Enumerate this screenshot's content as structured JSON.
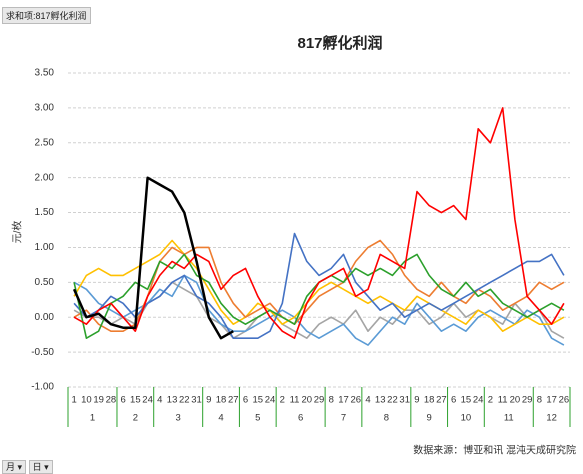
{
  "pivot_field": "求和项:817孵化利润",
  "filters": [
    "月",
    "日"
  ],
  "chart_data": {
    "type": "line",
    "title": "817孵化利润",
    "y_label": "元/枚",
    "source": "数据来源：博亚和讯 混沌天成研究院",
    "months": [
      {
        "label": "1",
        "days": [
          "1",
          "10",
          "19",
          "28"
        ]
      },
      {
        "label": "2",
        "days": [
          "6",
          "15",
          "24"
        ]
      },
      {
        "label": "3",
        "days": [
          "4",
          "13",
          "22",
          "31"
        ]
      },
      {
        "label": "4",
        "days": [
          "9",
          "18",
          "27"
        ]
      },
      {
        "label": "5",
        "days": [
          "6",
          "15",
          "24"
        ]
      },
      {
        "label": "6",
        "days": [
          "2",
          "11",
          "20",
          "29"
        ]
      },
      {
        "label": "7",
        "days": [
          "8",
          "17",
          "26"
        ]
      },
      {
        "label": "8",
        "days": [
          "4",
          "13",
          "22",
          "31"
        ]
      },
      {
        "label": "9",
        "days": [
          "9",
          "18",
          "27"
        ]
      },
      {
        "label": "10",
        "days": [
          "6",
          "15",
          "24"
        ]
      },
      {
        "label": "11",
        "days": [
          "2",
          "11",
          "20",
          "29"
        ]
      },
      {
        "label": "12",
        "days": [
          "8",
          "17",
          "26"
        ]
      }
    ],
    "ylim": [
      -1,
      3.5
    ],
    "yticks": [
      {
        "value": -1,
        "label": "-1.00"
      },
      {
        "value": -0.5,
        "label": "-0.50"
      },
      {
        "value": 0,
        "label": "0.00"
      },
      {
        "value": 0.5,
        "label": "0.50"
      },
      {
        "value": 1,
        "label": "1.00"
      },
      {
        "value": 1.5,
        "label": "1.50"
      },
      {
        "value": 2,
        "label": "2.00"
      },
      {
        "value": 2.5,
        "label": "2.50"
      },
      {
        "value": 3,
        "label": "3.00"
      },
      {
        "value": 3.5,
        "label": "3.50"
      }
    ],
    "grid": true,
    "series": [
      {
        "color": "#a5a5a5",
        "values": [
          0.1,
          0.0,
          0.0,
          -0.1,
          0.0,
          -0.1,
          0.2,
          0.3,
          0.5,
          0.4,
          0.3,
          0.0,
          -0.1,
          -0.3,
          -0.2,
          0.0,
          0.1,
          -0.1,
          -0.2,
          -0.3,
          -0.1,
          0.0,
          -0.1,
          0.1,
          -0.2,
          0.0,
          -0.1,
          0.1,
          0.1,
          -0.1,
          0.0,
          0.2,
          0.0,
          0.1,
          0.0,
          -0.1,
          0.2,
          0.0,
          0.1,
          -0.2,
          -0.3
        ]
      },
      {
        "color": "#5b9bd5",
        "values": [
          0.5,
          0.4,
          0.2,
          0.1,
          0.0,
          0.1,
          0.2,
          0.4,
          0.3,
          0.6,
          0.5,
          0.1,
          -0.1,
          -0.2,
          -0.2,
          -0.1,
          0.0,
          0.1,
          0.0,
          -0.2,
          -0.3,
          -0.2,
          -0.1,
          -0.3,
          -0.4,
          -0.2,
          0.0,
          -0.1,
          0.2,
          0.0,
          -0.2,
          -0.1,
          -0.2,
          0.0,
          0.1,
          0.0,
          -0.1,
          0.1,
          0.0,
          -0.3,
          -0.4
        ]
      },
      {
        "color": "#ffc000",
        "values": [
          0.3,
          0.6,
          0.7,
          0.6,
          0.6,
          0.7,
          0.8,
          0.9,
          1.1,
          0.9,
          0.7,
          0.4,
          0.1,
          -0.1,
          0.0,
          0.2,
          0.1,
          -0.1,
          0.0,
          0.2,
          0.4,
          0.5,
          0.4,
          0.3,
          0.2,
          0.3,
          0.2,
          0.1,
          0.3,
          0.2,
          0.1,
          0.0,
          -0.1,
          0.1,
          0.0,
          -0.2,
          -0.1,
          0.0,
          -0.1,
          -0.1,
          0.0
        ]
      },
      {
        "color": "#ed7d31",
        "values": [
          0.0,
          0.1,
          -0.1,
          -0.2,
          -0.2,
          -0.1,
          0.3,
          0.8,
          1.0,
          0.9,
          1.0,
          1.0,
          0.5,
          0.2,
          0.0,
          0.1,
          0.2,
          0.0,
          -0.1,
          0.1,
          0.3,
          0.4,
          0.5,
          0.8,
          1.0,
          1.1,
          0.9,
          0.6,
          0.4,
          0.3,
          0.5,
          0.3,
          0.2,
          0.4,
          0.3,
          0.1,
          0.2,
          0.3,
          0.5,
          0.4,
          0.5
        ]
      },
      {
        "color": "#4472c4",
        "values": [
          0.2,
          0.0,
          0.1,
          0.3,
          0.2,
          0.0,
          0.2,
          0.3,
          0.5,
          0.6,
          0.3,
          0.2,
          0.0,
          -0.3,
          -0.3,
          -0.3,
          -0.2,
          0.2,
          1.2,
          0.8,
          0.6,
          0.7,
          0.9,
          0.5,
          0.3,
          0.1,
          0.2,
          0.0,
          0.1,
          0.2,
          0.1,
          0.2,
          0.3,
          0.4,
          0.5,
          0.6,
          0.7,
          0.8,
          0.8,
          0.9,
          0.6
        ]
      },
      {
        "color": "#2ca02c",
        "values": [
          0.5,
          -0.3,
          -0.2,
          0.2,
          0.3,
          0.5,
          0.4,
          0.8,
          0.7,
          0.9,
          0.6,
          0.5,
          0.2,
          0.0,
          -0.1,
          0.0,
          0.1,
          0.0,
          -0.1,
          0.3,
          0.5,
          0.6,
          0.5,
          0.7,
          0.6,
          0.7,
          0.6,
          0.8,
          0.9,
          0.6,
          0.4,
          0.3,
          0.5,
          0.3,
          0.4,
          0.2,
          0.1,
          0.0,
          0.1,
          0.2,
          0.1
        ]
      },
      {
        "color": "#ff0000",
        "values": [
          0.0,
          -0.1,
          0.1,
          0.2,
          0.0,
          -0.2,
          0.3,
          0.6,
          0.8,
          0.7,
          0.9,
          0.8,
          0.4,
          0.6,
          0.7,
          0.3,
          0.0,
          -0.2,
          -0.3,
          0.2,
          0.5,
          0.6,
          0.7,
          0.3,
          0.4,
          0.9,
          0.8,
          0.7,
          1.8,
          1.6,
          1.5,
          1.6,
          1.4,
          2.7,
          2.5,
          3.0,
          1.4,
          0.3,
          0.1,
          -0.1,
          0.2
        ]
      },
      {
        "color": "#000000",
        "values": [
          0.4,
          0.0,
          0.05,
          -0.1,
          -0.15,
          -0.15,
          2.0,
          1.9,
          1.8,
          1.5,
          0.8,
          0.0,
          -0.3,
          -0.2,
          null,
          null,
          null,
          null,
          null,
          null,
          null,
          null,
          null,
          null,
          null,
          null,
          null,
          null,
          null,
          null,
          null,
          null,
          null,
          null,
          null,
          null,
          null,
          null,
          null,
          null,
          null
        ]
      }
    ]
  }
}
